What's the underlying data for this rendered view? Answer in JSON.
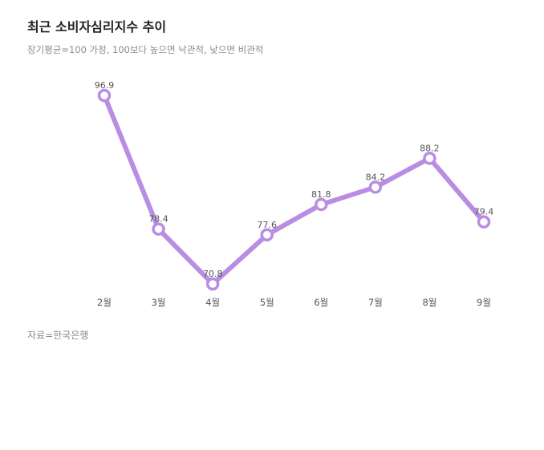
{
  "chart_data": {
    "type": "line",
    "title": "최근 소비자심리지수 추이",
    "subtitle": "장기평균=100 가정, 100보다 높으면 낙관적, 낮으면 비관적",
    "categories": [
      "2월",
      "3월",
      "4월",
      "5월",
      "6월",
      "7월",
      "8월",
      "9월"
    ],
    "series": [
      {
        "values": [
          96.9,
          78.4,
          70.8,
          77.6,
          81.8,
          84.2,
          88.2,
          79.4
        ],
        "color": "#b98de3"
      }
    ],
    "data_labels": [
      "96.9",
      "78.4",
      "70.8",
      "77.6",
      "81.8",
      "84.2",
      "88.2",
      "79.4"
    ],
    "ylim": [
      70.8,
      96.9
    ],
    "grid": false,
    "source": "자료=한국은행"
  }
}
